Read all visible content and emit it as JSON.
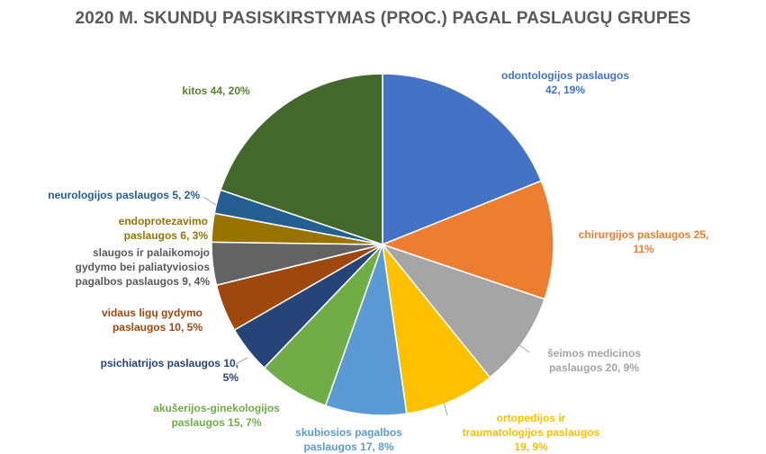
{
  "chart_data": {
    "type": "pie",
    "title": "2020 M. SKUNDŲ PASISKIRSTYMAS (PROC.) PAGAL PASLAUGŲ GRUPES",
    "slices": [
      {
        "name": "odontologijos paslaugos",
        "value": 42,
        "percent": "19%",
        "label_lines": [
          "odontologijos paslaugos",
          "42, 19%"
        ],
        "color": "#4472C4"
      },
      {
        "name": "chirurgijos paslaugos",
        "value": 25,
        "percent": "11%",
        "label_lines": [
          "chirurgijos paslaugos 25,",
          "11%"
        ],
        "color": "#ED7D31"
      },
      {
        "name": "šeimos medicinos paslaugos",
        "value": 20,
        "percent": "9%",
        "label_lines": [
          "šeimos medicinos",
          "paslaugos 20, 9%"
        ],
        "color": "#A5A5A5"
      },
      {
        "name": "ortopedijos ir traumatologijos paslaugos",
        "value": 19,
        "percent": "9%",
        "label_lines": [
          "ortopedijos ir",
          "traumatologijos paslaugos",
          "19, 9%"
        ],
        "color": "#FFC000"
      },
      {
        "name": "skubiosios pagalbos paslaugos",
        "value": 17,
        "percent": "8%",
        "label_lines": [
          "skubiosios pagalbos",
          "paslaugos 17, 8%"
        ],
        "color": "#5B9BD5"
      },
      {
        "name": "akušerijos-ginekologijos paslaugos",
        "value": 15,
        "percent": "7%",
        "label_lines": [
          "akušerijos-ginekologijos",
          "paslaugos 15, 7%"
        ],
        "color": "#70AD47"
      },
      {
        "name": "psichiatrijos paslaugos",
        "value": 10,
        "percent": "5%",
        "label_lines": [
          "psichiatrijos paslaugos 10,",
          "5%"
        ],
        "color": "#264478"
      },
      {
        "name": "vidaus ligų gydymo paslaugos",
        "value": 10,
        "percent": "5%",
        "label_lines": [
          "vidaus ligų gydymo",
          "paslaugos 10, 5%"
        ],
        "color": "#9E480E"
      },
      {
        "name": "slaugos ir palaikomojo gydymo bei paliatyviosios pagalbos paslaugos",
        "value": 9,
        "percent": "4%",
        "label_lines": [
          "slaugos ir palaikomojo",
          "gydymo bei paliatyviosios",
          "pagalbos paslaugos 9, 4%"
        ],
        "color": "#636363"
      },
      {
        "name": "endoprotezavimo paslaugos",
        "value": 6,
        "percent": "3%",
        "label_lines": [
          "endoprotezavimo",
          "paslaugos 6, 3%"
        ],
        "color": "#997300"
      },
      {
        "name": "neurologijos paslaugos",
        "value": 5,
        "percent": "2%",
        "label_lines": [
          "neurologijos paslaugos 5, 2%"
        ],
        "color": "#255E91"
      },
      {
        "name": "kitos",
        "value": 44,
        "percent": "20%",
        "label_lines": [
          "kitos  44, 20%"
        ],
        "color": "#43682B"
      }
    ],
    "legend": "none",
    "start_angle_deg": 0,
    "direction": "clockwise"
  }
}
